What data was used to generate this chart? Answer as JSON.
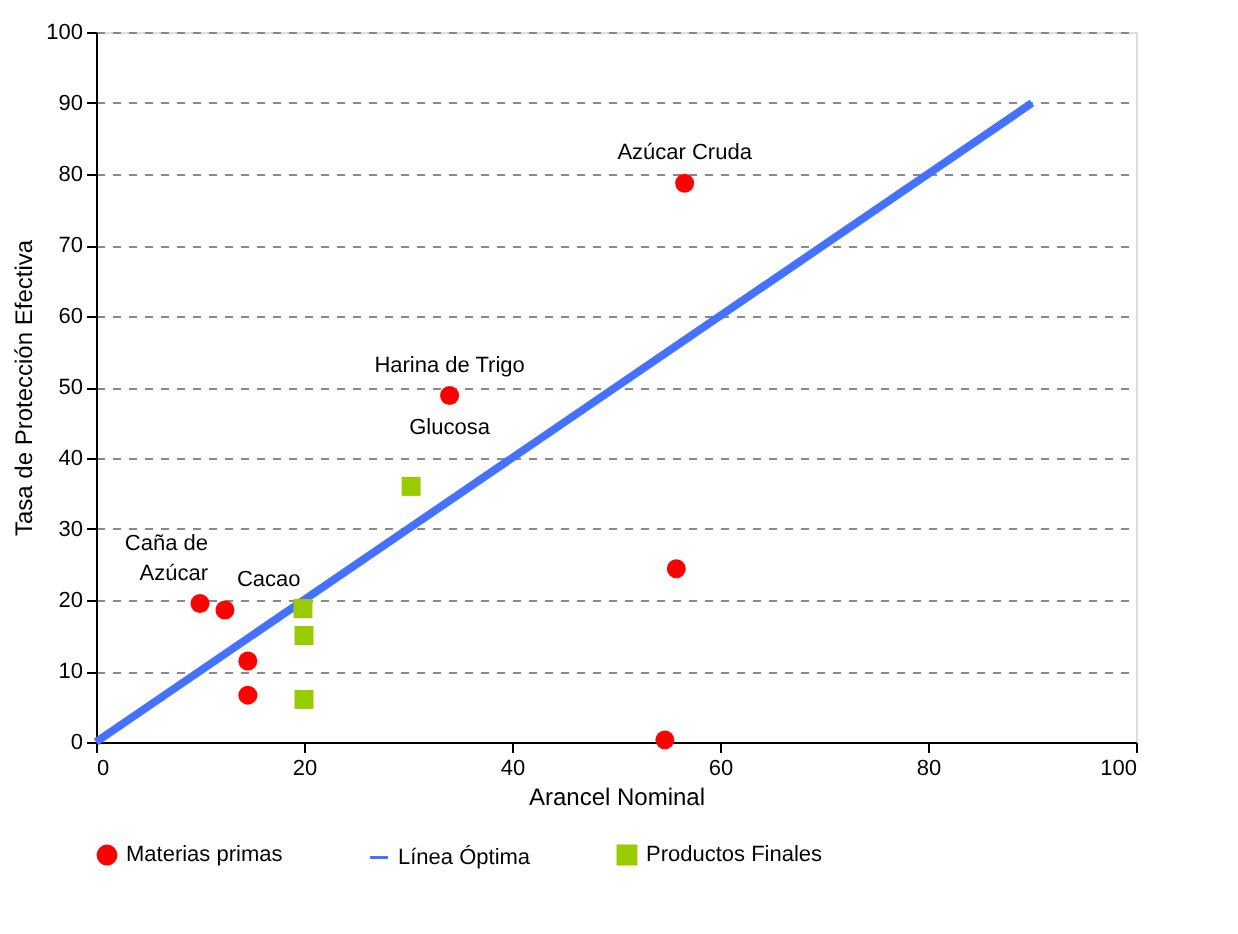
{
  "chart_data": {
    "type": "scatter",
    "xlabel": "Arancel Nominal",
    "ylabel": "Tasa de Protección Efectiva",
    "xlim": [
      0,
      100
    ],
    "xticks": [
      0,
      20,
      40,
      60,
      80,
      100
    ],
    "ylim": [
      0,
      100
    ],
    "yticks": [
      0,
      10,
      20,
      30,
      40,
      50,
      60,
      70,
      80,
      90,
      100
    ],
    "grid": "y",
    "legend": "bottom",
    "series": [
      {
        "name": "Materias primas",
        "marker": "circle",
        "color": "#ff0000",
        "x": [
          10,
          12.4,
          14.6,
          14.6,
          19.5,
          34,
          56.6,
          55.8,
          54.7
        ],
        "values": [
          19.5,
          18.6,
          11.4,
          6.6,
          null,
          48.8,
          78.7,
          24.4,
          0.3
        ]
      },
      {
        "name": "Línea Óptima",
        "type": "line",
        "marker": "none",
        "line_style": "solid",
        "color": "#4472ff",
        "x": [
          0,
          90
        ],
        "values": [
          0,
          90
        ]
      },
      {
        "name": "Productos Finales",
        "marker": "square",
        "color": "#99cc00",
        "x": [
          19.9,
          20,
          20,
          30.3
        ],
        "values": [
          18.8,
          15,
          6,
          36
        ]
      }
    ],
    "annotations": [
      {
        "text": "Azúcar Cruda",
        "x": 56.6,
        "y": 78.7
      },
      {
        "text": "Harina de Trigo",
        "x": 34,
        "y": 48.8
      },
      {
        "text": "Glucosa",
        "x": 34,
        "y": 48.8
      },
      {
        "text": "Caña de\nAzúcar",
        "x": 10,
        "y": 19.5
      },
      {
        "text": "Cacao",
        "x": 12.4,
        "y": 18.6
      }
    ]
  }
}
